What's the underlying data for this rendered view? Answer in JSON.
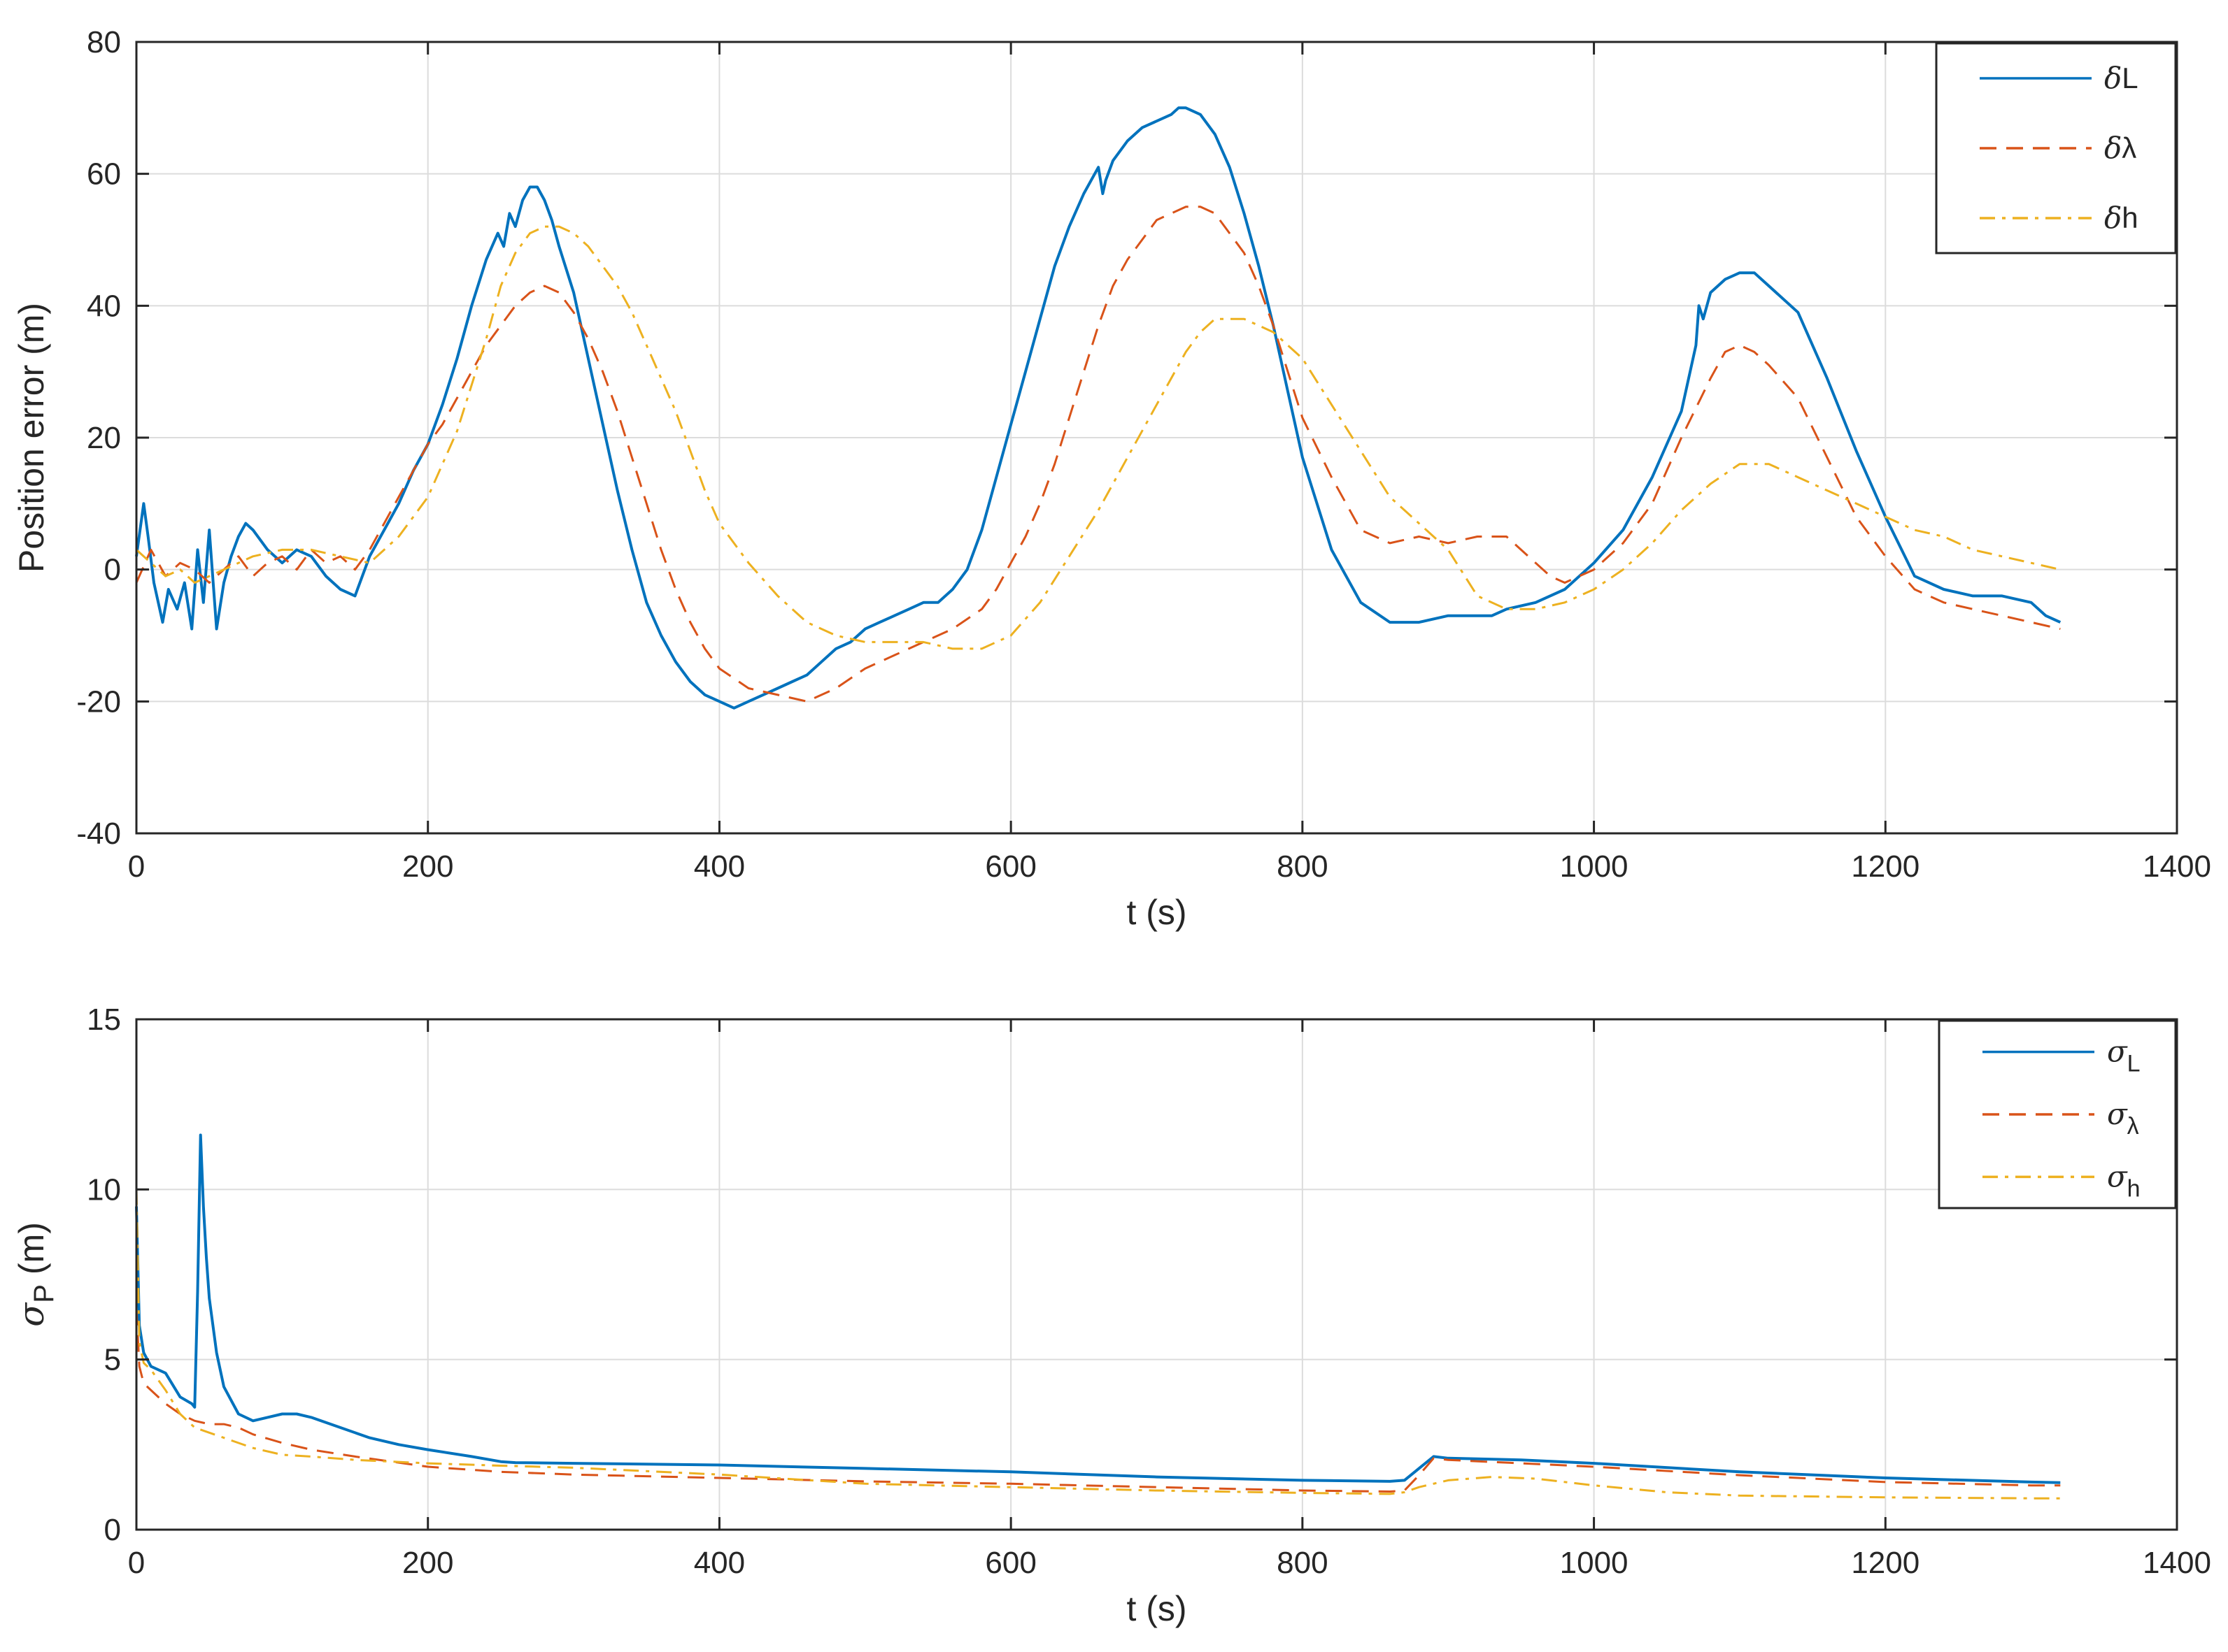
{
  "chart_data": [
    {
      "type": "line",
      "title": "",
      "xlabel": "t (s)",
      "ylabel": "Position error (m)",
      "xlim": [
        0,
        1400
      ],
      "ylim": [
        -40,
        80
      ],
      "xticks": [
        0,
        200,
        400,
        600,
        800,
        1000,
        1200,
        1400
      ],
      "yticks": [
        -40,
        -20,
        0,
        20,
        40,
        60,
        80
      ],
      "grid": true,
      "legend_position": "top-right",
      "series": [
        {
          "name": "δL",
          "color": "#0072BD",
          "style": "solid",
          "x": [
            0,
            5,
            8,
            12,
            18,
            22,
            28,
            33,
            38,
            42,
            46,
            50,
            55,
            60,
            65,
            70,
            75,
            80,
            90,
            100,
            110,
            120,
            130,
            140,
            150,
            160,
            170,
            180,
            190,
            200,
            210,
            220,
            230,
            240,
            248,
            252,
            256,
            260,
            265,
            270,
            275,
            280,
            285,
            290,
            300,
            310,
            320,
            330,
            340,
            350,
            360,
            370,
            380,
            390,
            400,
            410,
            420,
            430,
            440,
            450,
            460,
            470,
            480,
            490,
            500,
            510,
            520,
            530,
            540,
            550,
            560,
            570,
            580,
            590,
            600,
            610,
            620,
            630,
            640,
            650,
            660,
            663,
            665,
            670,
            680,
            690,
            700,
            710,
            715,
            720,
            730,
            740,
            750,
            760,
            770,
            780,
            790,
            800,
            820,
            840,
            860,
            880,
            900,
            920,
            930,
            940,
            960,
            980,
            1000,
            1020,
            1040,
            1060,
            1070,
            1072,
            1075,
            1080,
            1090,
            1100,
            1110,
            1120,
            1140,
            1160,
            1180,
            1200,
            1220,
            1240,
            1260,
            1280,
            1300,
            1310,
            1320
          ],
          "y": [
            2,
            10,
            5,
            -2,
            -8,
            -3,
            -6,
            -2,
            -9,
            3,
            -5,
            6,
            -9,
            -2,
            2,
            5,
            7,
            6,
            3,
            1,
            3,
            2,
            -1,
            -3,
            -4,
            2,
            6,
            10,
            15,
            19,
            25,
            32,
            40,
            47,
            51,
            49,
            54,
            52,
            56,
            58,
            58,
            56,
            53,
            49,
            42,
            32,
            22,
            12,
            3,
            -5,
            -10,
            -14,
            -17,
            -19,
            -20,
            -21,
            -20,
            -19,
            -18,
            -17,
            -16,
            -14,
            -12,
            -11,
            -9,
            -8,
            -7,
            -6,
            -5,
            -5,
            -3,
            0,
            6,
            14,
            22,
            30,
            38,
            46,
            52,
            57,
            61,
            57,
            59,
            62,
            65,
            67,
            68,
            69,
            70,
            70,
            69,
            66,
            61,
            54,
            46,
            37,
            27,
            17,
            3,
            -5,
            -8,
            -8,
            -7,
            -7,
            -7,
            -6,
            -5,
            -3,
            1,
            6,
            14,
            24,
            34,
            40,
            38,
            42,
            44,
            45,
            45,
            43,
            39,
            29,
            18,
            8,
            -1,
            -3,
            -4,
            -4,
            -5,
            -7,
            -8
          ]
        },
        {
          "name": "δλ",
          "color": "#D95319",
          "style": "dashed",
          "x": [
            0,
            10,
            20,
            30,
            40,
            50,
            60,
            70,
            80,
            90,
            100,
            110,
            120,
            130,
            140,
            150,
            160,
            170,
            180,
            190,
            200,
            210,
            220,
            230,
            240,
            250,
            260,
            270,
            280,
            290,
            300,
            310,
            320,
            330,
            340,
            350,
            360,
            370,
            380,
            390,
            400,
            420,
            440,
            460,
            480,
            500,
            520,
            540,
            560,
            580,
            590,
            600,
            610,
            620,
            630,
            640,
            650,
            660,
            670,
            680,
            690,
            700,
            710,
            720,
            730,
            740,
            750,
            760,
            770,
            780,
            790,
            800,
            820,
            840,
            860,
            880,
            900,
            920,
            940,
            960,
            970,
            980,
            1000,
            1020,
            1040,
            1060,
            1080,
            1090,
            1100,
            1110,
            1120,
            1140,
            1160,
            1180,
            1200,
            1220,
            1240,
            1260,
            1280,
            1300,
            1320
          ],
          "y": [
            -2,
            3,
            -1,
            1,
            0,
            -2,
            0,
            2,
            -1,
            1,
            2,
            0,
            3,
            1,
            2,
            0,
            3,
            7,
            11,
            15,
            19,
            22,
            26,
            30,
            34,
            37,
            40,
            42,
            43,
            42,
            39,
            35,
            30,
            24,
            17,
            10,
            3,
            -3,
            -8,
            -12,
            -15,
            -18,
            -19,
            -20,
            -18,
            -15,
            -13,
            -11,
            -9,
            -6,
            -3,
            1,
            5,
            10,
            16,
            23,
            30,
            37,
            43,
            47,
            50,
            53,
            54,
            55,
            55,
            54,
            51,
            48,
            43,
            37,
            30,
            23,
            14,
            6,
            4,
            5,
            4,
            5,
            5,
            1,
            -1,
            -2,
            0,
            4,
            10,
            20,
            29,
            33,
            34,
            33,
            31,
            26,
            17,
            8,
            2,
            -3,
            -5,
            -6,
            -7,
            -8,
            -9
          ]
        },
        {
          "name": "δh",
          "color": "#EDB120",
          "style": "dashdot",
          "x": [
            0,
            10,
            20,
            30,
            40,
            50,
            60,
            80,
            100,
            120,
            140,
            160,
            180,
            200,
            220,
            240,
            250,
            260,
            270,
            280,
            290,
            300,
            310,
            320,
            330,
            340,
            350,
            360,
            370,
            380,
            390,
            400,
            420,
            440,
            460,
            480,
            500,
            520,
            540,
            560,
            580,
            600,
            620,
            640,
            660,
            680,
            700,
            720,
            730,
            740,
            760,
            780,
            800,
            820,
            840,
            860,
            880,
            900,
            920,
            940,
            960,
            980,
            1000,
            1020,
            1040,
            1060,
            1080,
            1100,
            1120,
            1140,
            1160,
            1180,
            1200,
            1220,
            1240,
            1260,
            1280,
            1300,
            1320
          ],
          "y": [
            3,
            1,
            -1,
            0,
            -2,
            -1,
            0,
            2,
            3,
            3,
            2,
            1,
            5,
            11,
            21,
            35,
            43,
            48,
            51,
            52,
            52,
            51,
            49,
            46,
            43,
            39,
            34,
            29,
            24,
            18,
            12,
            7,
            1,
            -4,
            -8,
            -10,
            -11,
            -11,
            -11,
            -12,
            -12,
            -10,
            -5,
            2,
            9,
            17,
            25,
            33,
            36,
            38,
            38,
            36,
            32,
            25,
            18,
            11,
            7,
            3,
            -4,
            -6,
            -6,
            -5,
            -3,
            0,
            4,
            9,
            13,
            16,
            16,
            14,
            12,
            10,
            8,
            6,
            5,
            3,
            2,
            1,
            0
          ]
        }
      ]
    },
    {
      "type": "line",
      "title": "",
      "xlabel": "t (s)",
      "ylabel": "σP (m)",
      "xlim": [
        0,
        1400
      ],
      "ylim": [
        0,
        15
      ],
      "xticks": [
        0,
        200,
        400,
        600,
        800,
        1000,
        1200,
        1400
      ],
      "yticks": [
        0,
        5,
        10,
        15
      ],
      "grid": true,
      "legend_position": "top-right",
      "series": [
        {
          "name": "σL",
          "color": "#0072BD",
          "style": "solid",
          "x": [
            0,
            2,
            5,
            10,
            20,
            30,
            38,
            40,
            42,
            44,
            46,
            48,
            50,
            55,
            60,
            70,
            80,
            90,
            100,
            110,
            120,
            140,
            160,
            180,
            200,
            230,
            250,
            260,
            300,
            400,
            500,
            600,
            700,
            800,
            860,
            870,
            880,
            890,
            900,
            950,
            1000,
            1100,
            1200,
            1300,
            1320
          ],
          "y": [
            9.5,
            6,
            5.2,
            4.8,
            4.6,
            3.9,
            3.7,
            3.6,
            7,
            11.6,
            9.5,
            8,
            6.8,
            5.2,
            4.2,
            3.4,
            3.2,
            3.3,
            3.4,
            3.4,
            3.3,
            3.0,
            2.7,
            2.5,
            2.35,
            2.15,
            2.0,
            1.97,
            1.95,
            1.9,
            1.8,
            1.7,
            1.55,
            1.45,
            1.42,
            1.45,
            1.8,
            2.15,
            2.1,
            2.05,
            1.95,
            1.7,
            1.52,
            1.4,
            1.38
          ]
        },
        {
          "name": "σλ",
          "color": "#D95319",
          "style": "dashed",
          "x": [
            0,
            2,
            5,
            10,
            20,
            30,
            40,
            50,
            60,
            70,
            80,
            100,
            120,
            150,
            200,
            250,
            300,
            400,
            500,
            600,
            700,
            800,
            860,
            870,
            880,
            890,
            900,
            950,
            1000,
            1100,
            1200,
            1300,
            1320
          ],
          "y": [
            6.5,
            4.8,
            4.3,
            4.1,
            3.7,
            3.4,
            3.2,
            3.1,
            3.1,
            3.0,
            2.8,
            2.55,
            2.35,
            2.15,
            1.85,
            1.7,
            1.62,
            1.52,
            1.42,
            1.35,
            1.25,
            1.15,
            1.12,
            1.15,
            1.6,
            2.1,
            2.05,
            1.95,
            1.85,
            1.6,
            1.4,
            1.3,
            1.3
          ]
        },
        {
          "name": "σh",
          "color": "#EDB120",
          "style": "dashdot",
          "x": [
            0,
            2,
            5,
            10,
            20,
            30,
            40,
            50,
            60,
            80,
            100,
            120,
            150,
            200,
            250,
            300,
            400,
            500,
            600,
            700,
            800,
            860,
            870,
            880,
            900,
            930,
            960,
            1000,
            1050,
            1100,
            1200,
            1300,
            1320
          ],
          "y": [
            10,
            5.5,
            4.9,
            4.7,
            4.1,
            3.4,
            3.0,
            2.85,
            2.7,
            2.4,
            2.2,
            2.15,
            2.05,
            1.95,
            1.88,
            1.82,
            1.62,
            1.35,
            1.25,
            1.15,
            1.08,
            1.05,
            1.1,
            1.25,
            1.45,
            1.55,
            1.5,
            1.3,
            1.1,
            1.0,
            0.95,
            0.92,
            0.92
          ]
        }
      ]
    }
  ]
}
